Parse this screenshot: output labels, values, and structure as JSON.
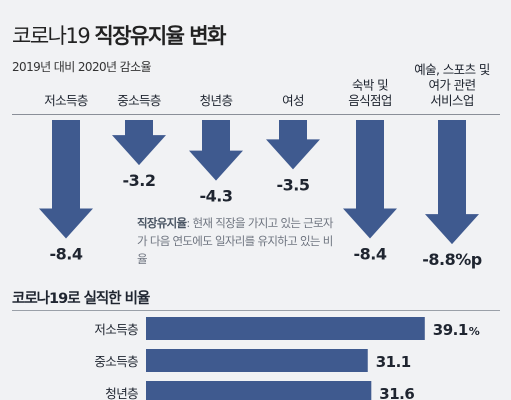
{
  "header": {
    "title_light": "코로나19",
    "title_bold": "직장유지율 변화",
    "subtitle": "2019년 대비 2020년 감소율"
  },
  "note": {
    "term": "직장유지율",
    "text": ": 현재 직장을 가지고 있는 근로자가 다음 연도에도 일자리를 유지하고 있는 비율"
  },
  "colors": {
    "arrow": "#3f5a8f",
    "bar": "#3f5a8f",
    "text": "#1f2530"
  },
  "chart_data": [
    {
      "type": "bar",
      "title": "코로나19 직장유지율 변화",
      "subtitle": "2019년 대비 2020년 감소율",
      "unit": "%p",
      "categories": [
        "저소득층",
        "중소득층",
        "청년층",
        "여성",
        "숙박 및 음식점업",
        "예술, 스포츠 및 여가 관련 서비스업"
      ],
      "values": [
        -8.4,
        -3.2,
        -4.3,
        -3.5,
        -8.4,
        -8.8
      ],
      "value_labels": [
        "-8.4",
        "-3.2",
        "-4.3",
        "-3.5",
        "-8.4",
        "-8.8%p"
      ],
      "category_lines": [
        [
          "저소득층"
        ],
        [
          "중소득층"
        ],
        [
          "청년층"
        ],
        [
          "여성"
        ],
        [
          "숙박 및",
          "음식점업"
        ],
        [
          "예술, 스포츠 및",
          "여가 관련",
          "서비스업"
        ]
      ]
    },
    {
      "type": "bar",
      "orientation": "horizontal",
      "title": "코로나19로 실직한 비율",
      "unit": "%",
      "categories": [
        "저소득층",
        "중소득층",
        "청년층"
      ],
      "values": [
        39.1,
        31.1,
        31.6
      ],
      "value_labels": [
        "39.1",
        "31.1",
        "31.6"
      ]
    }
  ]
}
